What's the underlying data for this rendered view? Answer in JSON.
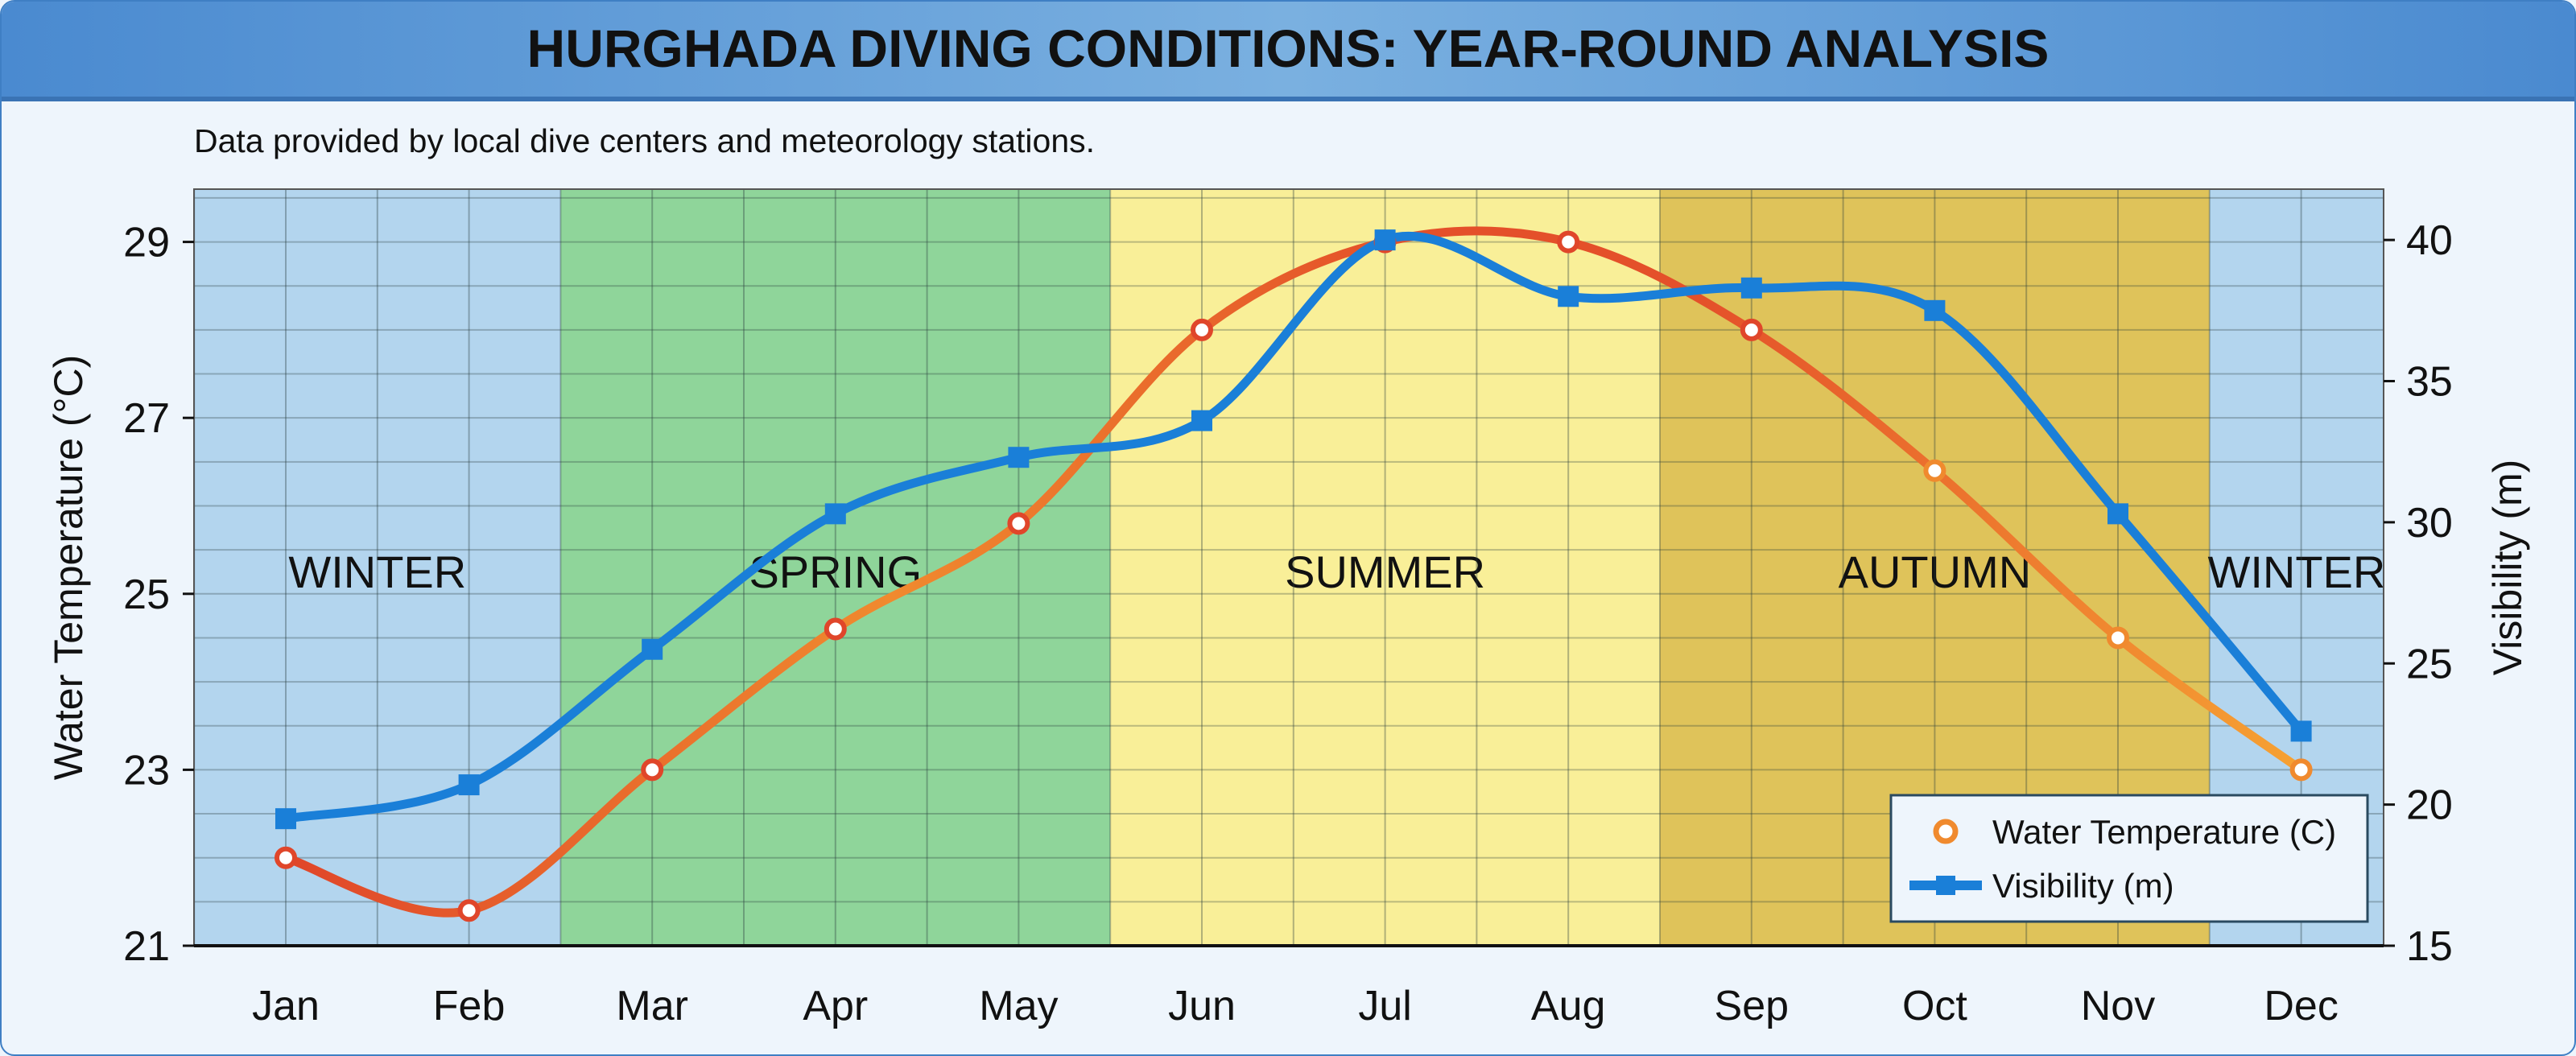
{
  "chart_data": {
    "type": "line",
    "title": "HURGHADA DIVING CONDITIONS: YEAR-ROUND ANALYSIS",
    "subtitle": "Data provided by local dive centers and meteorology stations.",
    "categories": [
      "Jan",
      "Feb",
      "Mar",
      "Apr",
      "May",
      "Jun",
      "Jul",
      "Aug",
      "Sep",
      "Oct",
      "Nov",
      "Dec"
    ],
    "series": [
      {
        "name": "Water Temperature (C)",
        "axis": "left",
        "color": "#ef6a2a",
        "marker": "circle",
        "values": [
          22.0,
          21.4,
          23.0,
          24.6,
          25.8,
          28.0,
          29.0,
          29.0,
          28.0,
          26.4,
          24.5,
          23.0
        ]
      },
      {
        "name": "Visibility (m)",
        "axis": "right",
        "color": "#1a7fd8",
        "marker": "square",
        "values": [
          19.5,
          20.7,
          25.5,
          30.3,
          32.3,
          33.6,
          40.0,
          38.0,
          38.3,
          37.5,
          30.3,
          22.6
        ]
      }
    ],
    "ylabel_left": "Water Temperature (°C)",
    "ylabel_right": "Visibility (m)",
    "ylim_left": [
      21,
      29.6
    ],
    "yticks_left": [
      21,
      23,
      25,
      27,
      29
    ],
    "ylim_right": [
      15,
      41.8
    ],
    "yticks_right": [
      15,
      20,
      25,
      30,
      35,
      40
    ],
    "grid": true,
    "legend_position": "bottom-right",
    "seasons": [
      {
        "label": "WINTER",
        "from": -0.5,
        "to": 1.5,
        "color": "#b3d5ee"
      },
      {
        "label": "SPRING",
        "from": 1.5,
        "to": 4.5,
        "color": "#8fd59a"
      },
      {
        "label": "SUMMER",
        "from": 4.5,
        "to": 7.5,
        "color": "#f9ef98"
      },
      {
        "label": "AUTUMN",
        "from": 7.5,
        "to": 10.5,
        "color": "#dfc35a"
      },
      {
        "label": "WINTER",
        "from": 10.5,
        "to": 11.45,
        "color": "#b3d5ee"
      }
    ]
  }
}
